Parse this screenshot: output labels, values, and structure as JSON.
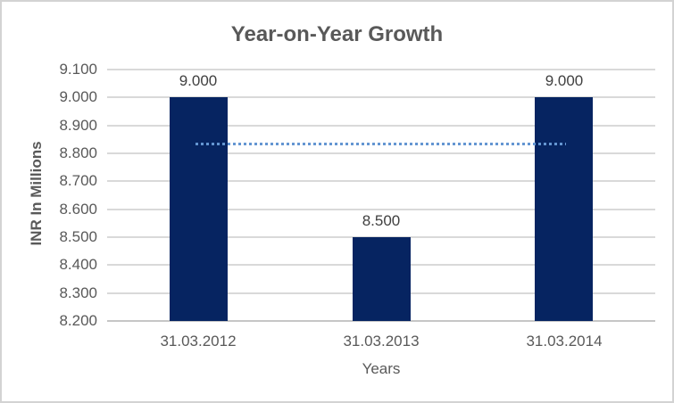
{
  "chart_data": {
    "type": "bar",
    "title": "Year-on-Year Growth",
    "categories": [
      "31.03.2012",
      "31.03.2013",
      "31.03.2014"
    ],
    "values": [
      9.0,
      8.5,
      9.0
    ],
    "data_labels": [
      "9.000",
      "8.500",
      "9.000"
    ],
    "xlabel": "Years",
    "ylabel": "INR In Millions",
    "ylim": [
      8.2,
      9.1
    ],
    "ytick_step": 0.1,
    "ytick_labels": [
      "8.200",
      "8.300",
      "8.400",
      "8.500",
      "8.600",
      "8.700",
      "8.800",
      "8.900",
      "9.000",
      "9.100"
    ],
    "grid": true,
    "legend": "none",
    "trendline": {
      "style": "dotted",
      "value": 8.8333,
      "color": "#6496d2"
    },
    "colors": {
      "bar": "#062461",
      "gridline": "#d9d9d9",
      "axis_line": "#c6c6c6",
      "title_text": "#595959",
      "axis_text": "#595959",
      "data_label_text": "#404040",
      "chart_border": "#d3d3d3",
      "background": "#ffffff"
    }
  }
}
